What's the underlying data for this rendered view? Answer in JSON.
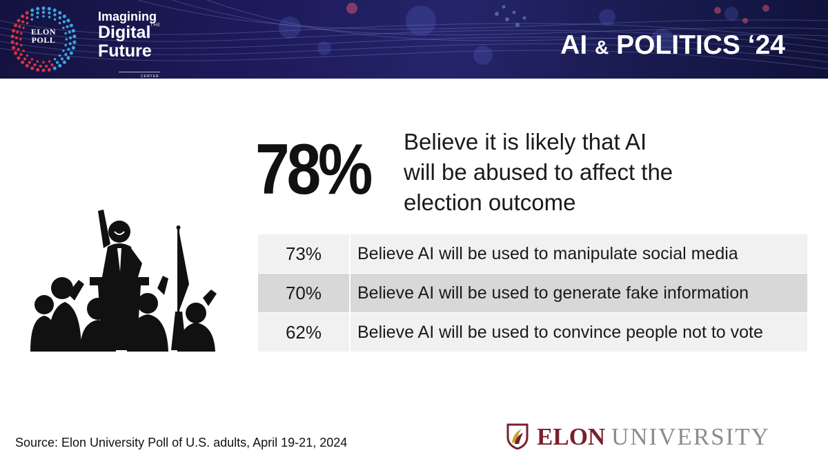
{
  "banner": {
    "logo_line1": "ELON",
    "logo_line2": "POLL",
    "idf_line1": "Imagining",
    "idf_the": "THE",
    "idf_line2": "Digital",
    "idf_line3": "Future",
    "idf_center": "CENTER",
    "title_part1": "AI",
    "title_amp": "&",
    "title_part2": "POLITICS ‘24",
    "colors": {
      "bg": "#1d1a5a",
      "dots_blue": "#3aa6e0",
      "dots_red": "#d9333f"
    }
  },
  "headline": {
    "value": "78%",
    "line1": "Believe it is likely that AI",
    "line2": "will be abused to affect the",
    "line3": "election outcome"
  },
  "rows": [
    {
      "value": "73%",
      "text": "Believe AI will be used to manipulate social media"
    },
    {
      "value": "70%",
      "text": "Believe AI will be used to generate fake information"
    },
    {
      "value": "62%",
      "text": "Believe AI will be used to convince people not to vote"
    }
  ],
  "illustration": {
    "icon": "political-rally-icon"
  },
  "footer": {
    "source": "Source: Elon University Poll of U.S. adults, April 19-21, 2024",
    "univ_elon": "ELON",
    "univ_rest": "UNIVERSITY",
    "colors": {
      "maroon": "#7a1f2b",
      "gold": "#c9a227",
      "gray": "#8c8c8c"
    }
  }
}
